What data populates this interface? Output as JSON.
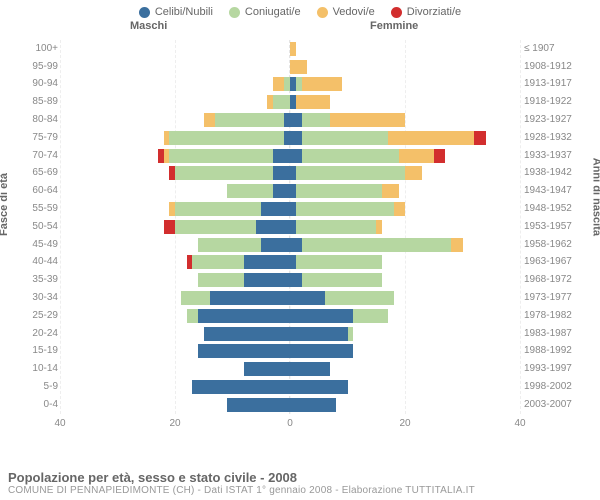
{
  "legend": [
    {
      "label": "Celibi/Nubili",
      "color": "#3b6f9e"
    },
    {
      "label": "Coniugati/e",
      "color": "#b6d7a1"
    },
    {
      "label": "Vedovi/e",
      "color": "#f4c069"
    },
    {
      "label": "Divorziati/e",
      "color": "#d22e2e"
    }
  ],
  "headers": {
    "male": "Maschi",
    "female": "Femmine"
  },
  "y_left_title": "Fasce di età",
  "y_right_title": "Anni di nascita",
  "x_axis": {
    "max": 40,
    "ticks": [
      40,
      20,
      0,
      20,
      40
    ]
  },
  "colors": {
    "single": "#3b6f9e",
    "married": "#b6d7a1",
    "widowed": "#f4c069",
    "divorced": "#d22e2e",
    "grid": "#eeeeee",
    "center": "#dcdcdc"
  },
  "footer": {
    "title": "Popolazione per età, sesso e stato civile - 2008",
    "sub": "COMUNE DI PENNAPIEDIMONTE (CH) - Dati ISTAT 1° gennaio 2008 - Elaborazione TUTTITALIA.IT"
  },
  "rows": [
    {
      "age": "100+",
      "year": "≤ 1907",
      "m": {
        "single": 0,
        "married": 0,
        "widowed": 0,
        "divorced": 0
      },
      "f": {
        "single": 0,
        "married": 0,
        "widowed": 1,
        "divorced": 0
      }
    },
    {
      "age": "95-99",
      "year": "1908-1912",
      "m": {
        "single": 0,
        "married": 0,
        "widowed": 0,
        "divorced": 0
      },
      "f": {
        "single": 0,
        "married": 0,
        "widowed": 3,
        "divorced": 0
      }
    },
    {
      "age": "90-94",
      "year": "1913-1917",
      "m": {
        "single": 0,
        "married": 1,
        "widowed": 2,
        "divorced": 0
      },
      "f": {
        "single": 1,
        "married": 1,
        "widowed": 7,
        "divorced": 0
      }
    },
    {
      "age": "85-89",
      "year": "1918-1922",
      "m": {
        "single": 0,
        "married": 3,
        "widowed": 1,
        "divorced": 0
      },
      "f": {
        "single": 1,
        "married": 0,
        "widowed": 6,
        "divorced": 0
      }
    },
    {
      "age": "80-84",
      "year": "1923-1927",
      "m": {
        "single": 1,
        "married": 12,
        "widowed": 2,
        "divorced": 0
      },
      "f": {
        "single": 2,
        "married": 5,
        "widowed": 13,
        "divorced": 0
      }
    },
    {
      "age": "75-79",
      "year": "1928-1932",
      "m": {
        "single": 1,
        "married": 20,
        "widowed": 1,
        "divorced": 0
      },
      "f": {
        "single": 2,
        "married": 15,
        "widowed": 15,
        "divorced": 2
      }
    },
    {
      "age": "70-74",
      "year": "1933-1937",
      "m": {
        "single": 3,
        "married": 18,
        "widowed": 1,
        "divorced": 1
      },
      "f": {
        "single": 2,
        "married": 17,
        "widowed": 6,
        "divorced": 2
      }
    },
    {
      "age": "65-69",
      "year": "1938-1942",
      "m": {
        "single": 3,
        "married": 17,
        "widowed": 0,
        "divorced": 1
      },
      "f": {
        "single": 1,
        "married": 19,
        "widowed": 3,
        "divorced": 0
      }
    },
    {
      "age": "60-64",
      "year": "1943-1947",
      "m": {
        "single": 3,
        "married": 8,
        "widowed": 0,
        "divorced": 0
      },
      "f": {
        "single": 1,
        "married": 15,
        "widowed": 3,
        "divorced": 0
      }
    },
    {
      "age": "55-59",
      "year": "1948-1952",
      "m": {
        "single": 5,
        "married": 15,
        "widowed": 1,
        "divorced": 0
      },
      "f": {
        "single": 1,
        "married": 17,
        "widowed": 2,
        "divorced": 0
      }
    },
    {
      "age": "50-54",
      "year": "1953-1957",
      "m": {
        "single": 6,
        "married": 14,
        "widowed": 0,
        "divorced": 2
      },
      "f": {
        "single": 1,
        "married": 14,
        "widowed": 1,
        "divorced": 0
      }
    },
    {
      "age": "45-49",
      "year": "1958-1962",
      "m": {
        "single": 5,
        "married": 11,
        "widowed": 0,
        "divorced": 0
      },
      "f": {
        "single": 2,
        "married": 26,
        "widowed": 2,
        "divorced": 0
      }
    },
    {
      "age": "40-44",
      "year": "1963-1967",
      "m": {
        "single": 8,
        "married": 9,
        "widowed": 0,
        "divorced": 1
      },
      "f": {
        "single": 1,
        "married": 15,
        "widowed": 0,
        "divorced": 0
      }
    },
    {
      "age": "35-39",
      "year": "1968-1972",
      "m": {
        "single": 8,
        "married": 8,
        "widowed": 0,
        "divorced": 0
      },
      "f": {
        "single": 2,
        "married": 14,
        "widowed": 0,
        "divorced": 0
      }
    },
    {
      "age": "30-34",
      "year": "1973-1977",
      "m": {
        "single": 14,
        "married": 5,
        "widowed": 0,
        "divorced": 0
      },
      "f": {
        "single": 6,
        "married": 12,
        "widowed": 0,
        "divorced": 0
      }
    },
    {
      "age": "25-29",
      "year": "1978-1982",
      "m": {
        "single": 16,
        "married": 2,
        "widowed": 0,
        "divorced": 0
      },
      "f": {
        "single": 11,
        "married": 6,
        "widowed": 0,
        "divorced": 0
      }
    },
    {
      "age": "20-24",
      "year": "1983-1987",
      "m": {
        "single": 15,
        "married": 0,
        "widowed": 0,
        "divorced": 0
      },
      "f": {
        "single": 10,
        "married": 1,
        "widowed": 0,
        "divorced": 0
      }
    },
    {
      "age": "15-19",
      "year": "1988-1992",
      "m": {
        "single": 16,
        "married": 0,
        "widowed": 0,
        "divorced": 0
      },
      "f": {
        "single": 11,
        "married": 0,
        "widowed": 0,
        "divorced": 0
      }
    },
    {
      "age": "10-14",
      "year": "1993-1997",
      "m": {
        "single": 8,
        "married": 0,
        "widowed": 0,
        "divorced": 0
      },
      "f": {
        "single": 7,
        "married": 0,
        "widowed": 0,
        "divorced": 0
      }
    },
    {
      "age": "5-9",
      "year": "1998-2002",
      "m": {
        "single": 17,
        "married": 0,
        "widowed": 0,
        "divorced": 0
      },
      "f": {
        "single": 10,
        "married": 0,
        "widowed": 0,
        "divorced": 0
      }
    },
    {
      "age": "0-4",
      "year": "2003-2007",
      "m": {
        "single": 11,
        "married": 0,
        "widowed": 0,
        "divorced": 0
      },
      "f": {
        "single": 8,
        "married": 0,
        "widowed": 0,
        "divorced": 0
      }
    }
  ]
}
